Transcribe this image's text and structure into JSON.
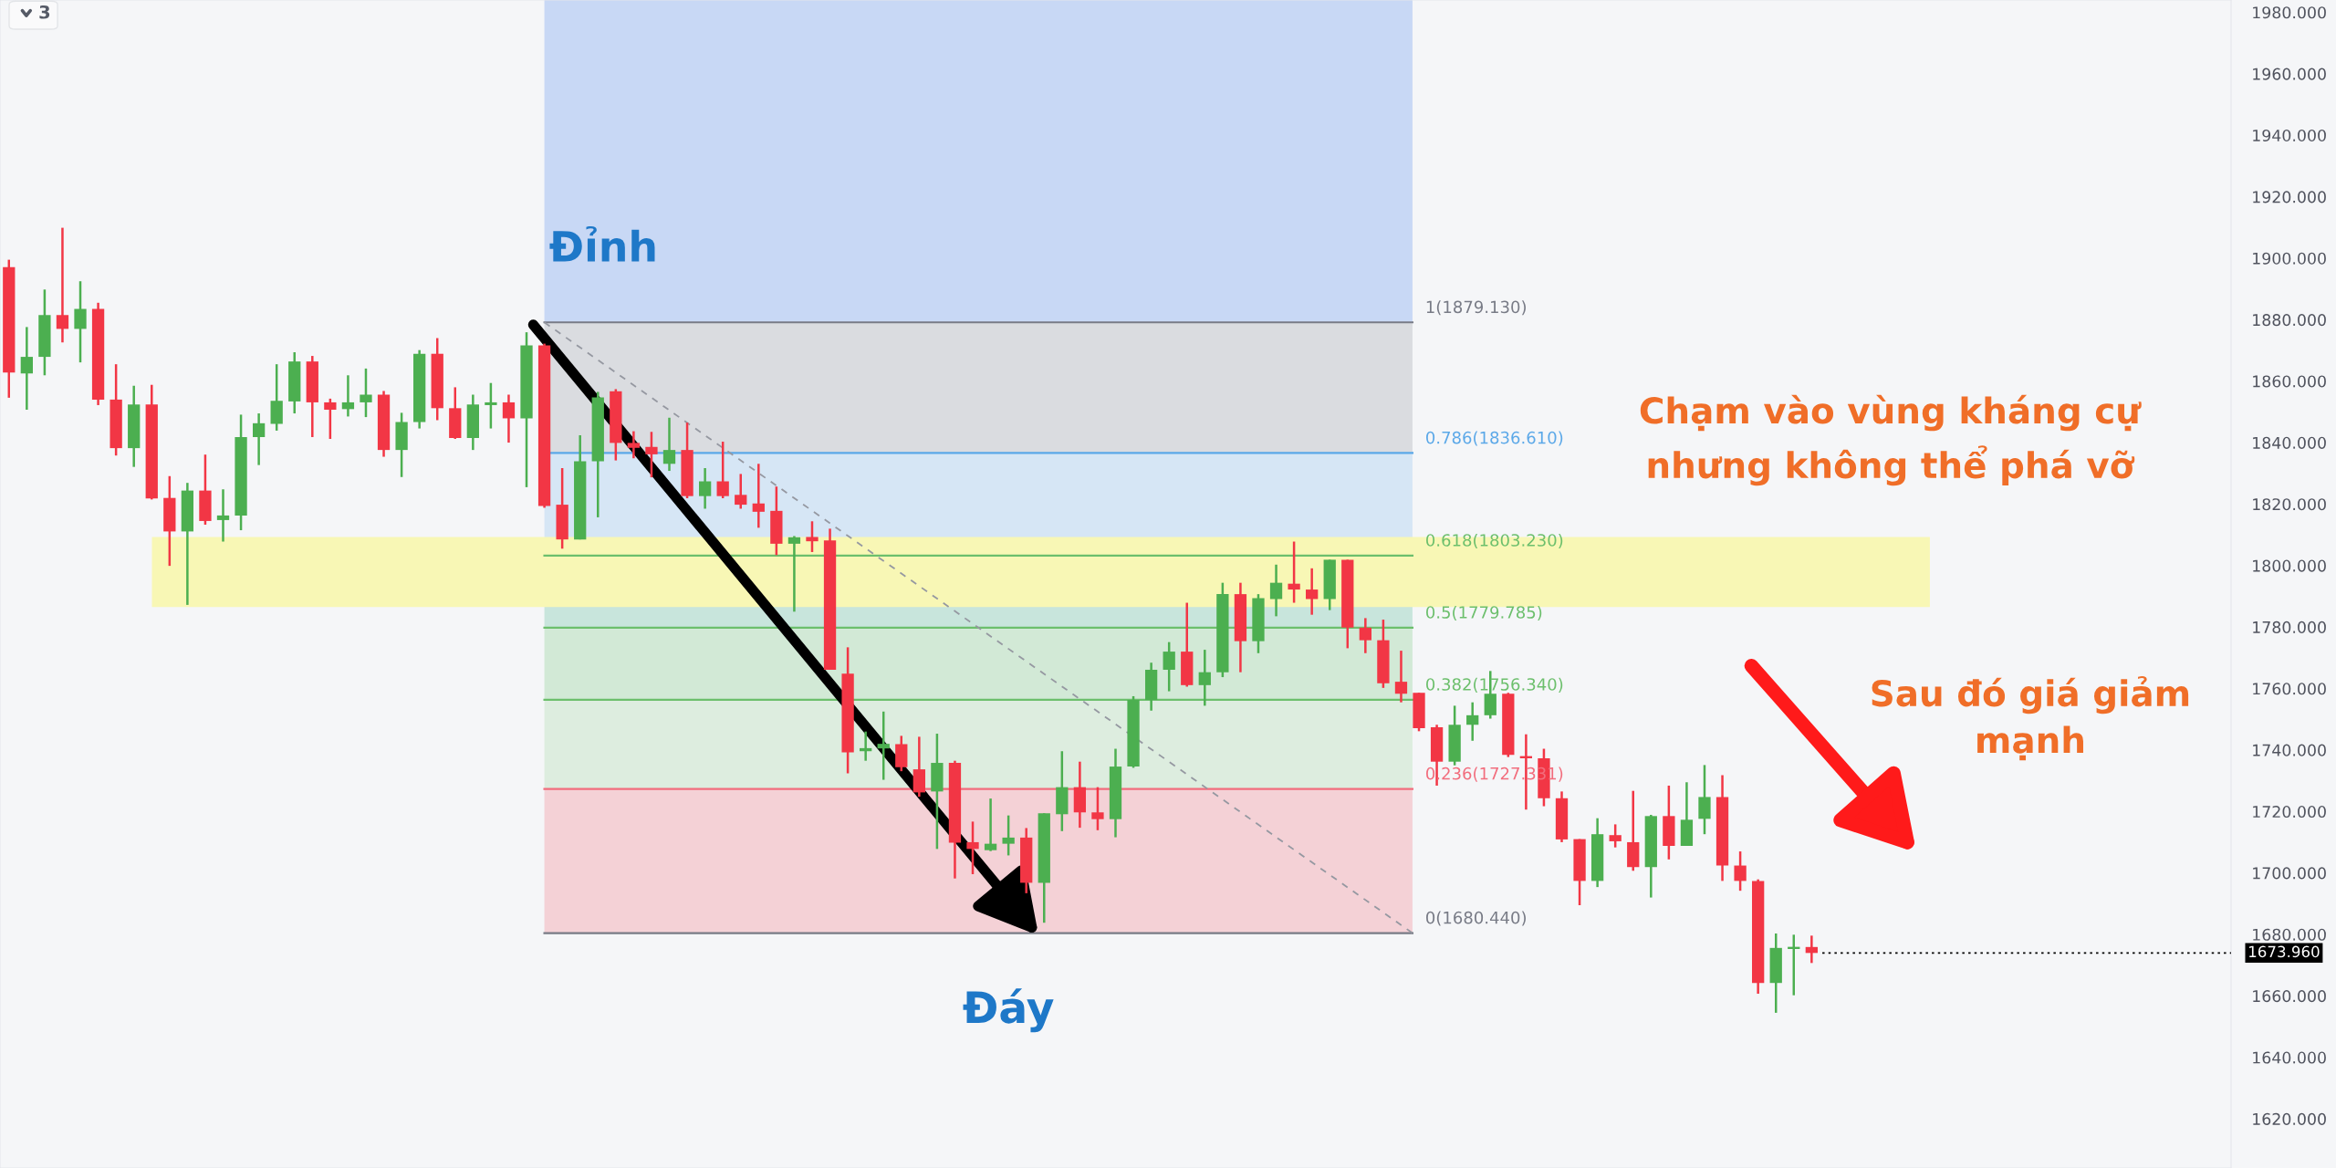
{
  "chart_data": {
    "type": "candlestick",
    "categories": [
      null,
      null,
      null,
      null,
      null,
      null,
      null,
      null,
      null,
      null,
      null,
      null,
      null,
      null,
      null,
      null,
      null,
      null,
      null,
      null,
      null,
      null,
      null,
      null,
      null,
      null,
      null,
      null,
      null,
      null,
      null,
      null,
      null,
      null,
      null,
      null,
      null,
      null,
      null,
      null,
      null,
      null,
      null,
      null,
      null,
      null,
      null,
      null,
      null,
      null,
      null,
      null,
      null,
      null,
      null,
      null,
      null,
      null,
      null,
      null,
      null,
      null,
      null,
      null,
      null,
      null,
      null,
      null,
      null,
      null,
      null,
      null,
      null,
      null,
      null,
      null,
      null,
      null,
      null,
      null,
      null,
      null,
      null,
      null,
      null,
      null,
      null,
      null,
      null,
      null,
      null,
      null,
      null,
      null,
      null,
      null,
      null,
      null,
      null,
      null,
      null,
      null,
      null,
      null,
      null,
      null,
      null,
      null,
      null,
      null,
      null,
      null,
      null,
      null,
      null,
      null,
      null,
      null,
      null,
      null,
      null,
      null,
      null,
      null,
      null
    ],
    "ohlc": [
      [
        1897.1,
        1899.5,
        1854.6,
        1862.8
      ],
      [
        1862.5,
        1877.6,
        1850.7,
        1867.9
      ],
      [
        1867.9,
        1889.8,
        1861.9,
        1881.5
      ],
      [
        1881.5,
        1909.9,
        1872.6,
        1877.0
      ],
      [
        1877.0,
        1892.5,
        1866.1,
        1883.5
      ],
      [
        1883.5,
        1885.5,
        1852.2,
        1854.0
      ],
      [
        1854.0,
        1865.5,
        1835.8,
        1838.2
      ],
      [
        1838.2,
        1858.5,
        1832.1,
        1852.4
      ],
      [
        1852.4,
        1858.8,
        1821.5,
        1821.8
      ],
      [
        1822.0,
        1829.1,
        1799.9,
        1811.1
      ],
      [
        1811.1,
        1826.9,
        1787.2,
        1824.4
      ],
      [
        1824.4,
        1836.1,
        1813.3,
        1814.5
      ],
      [
        1814.8,
        1824.8,
        1807.8,
        1816.3
      ],
      [
        1816.3,
        1849.1,
        1811.5,
        1841.8
      ],
      [
        1841.8,
        1849.5,
        1832.7,
        1846.3
      ],
      [
        1846.1,
        1865.5,
        1843.9,
        1853.6
      ],
      [
        1853.4,
        1869.4,
        1849.5,
        1866.4
      ],
      [
        1866.4,
        1868.2,
        1841.8,
        1853.1
      ],
      [
        1853.1,
        1854.3,
        1841.2,
        1850.7
      ],
      [
        1850.9,
        1861.9,
        1848.5,
        1853.1
      ],
      [
        1853.1,
        1864.1,
        1848.3,
        1855.6
      ],
      [
        1855.6,
        1856.8,
        1835.4,
        1837.6
      ],
      [
        1837.6,
        1849.7,
        1828.8,
        1846.7
      ],
      [
        1846.7,
        1870.1,
        1844.6,
        1868.9
      ],
      [
        1868.9,
        1874.0,
        1847.3,
        1851.2
      ],
      [
        1851.2,
        1858.0,
        1841.2,
        1841.5
      ],
      [
        1841.5,
        1855.6,
        1837.6,
        1852.4
      ],
      [
        1852.2,
        1859.4,
        1844.6,
        1853.1
      ],
      [
        1853.1,
        1855.6,
        1840.0,
        1847.9
      ],
      [
        1847.9,
        1875.9,
        1825.5,
        1871.6
      ],
      [
        1871.6,
        1872.2,
        1818.8,
        1819.4
      ],
      [
        1819.8,
        1831.7,
        1805.5,
        1808.5
      ],
      [
        1808.5,
        1842.4,
        1808.5,
        1833.9
      ],
      [
        1833.9,
        1856.5,
        1815.7,
        1854.7
      ],
      [
        1856.7,
        1857.4,
        1834.2,
        1839.9
      ],
      [
        1839.9,
        1843.7,
        1834.9,
        1838.3
      ],
      [
        1838.6,
        1843.5,
        1828.7,
        1836.2
      ],
      [
        1833.1,
        1848.1,
        1830.8,
        1837.6
      ],
      [
        1837.6,
        1846.5,
        1821.9,
        1822.6
      ],
      [
        1822.6,
        1831.7,
        1818.5,
        1827.4
      ],
      [
        1827.4,
        1840.3,
        1821.9,
        1822.6
      ],
      [
        1823.0,
        1829.8,
        1818.5,
        1819.8
      ],
      [
        1820.2,
        1833.1,
        1812.3,
        1817.5
      ],
      [
        1817.8,
        1825.7,
        1803.4,
        1807.1
      ],
      [
        1807.1,
        1809.6,
        1785.0,
        1809.2
      ],
      [
        1809.3,
        1814.4,
        1804.4,
        1807.9
      ],
      [
        1808.2,
        1812.0,
        1766.1,
        1766.1
      ],
      [
        1764.8,
        1773.4,
        1732.4,
        1739.2
      ],
      [
        1739.6,
        1746.0,
        1736.5,
        1740.6
      ],
      [
        1740.5,
        1752.5,
        1730.3,
        1742.0
      ],
      [
        1741.9,
        1744.6,
        1733.1,
        1734.4
      ],
      [
        1733.7,
        1744.3,
        1724.8,
        1726.2
      ],
      [
        1726.5,
        1745.3,
        1707.8,
        1735.8
      ],
      [
        1735.8,
        1736.5,
        1698.2,
        1709.8
      ],
      [
        1710.0,
        1716.7,
        1699.6,
        1707.8
      ],
      [
        1707.4,
        1724.2,
        1707.1,
        1709.5
      ],
      [
        1709.5,
        1718.7,
        1705.7,
        1711.5
      ],
      [
        1711.5,
        1714.6,
        1693.4,
        1696.8
      ],
      [
        1696.8,
        1719.4,
        1683.8,
        1719.4
      ],
      [
        1719.1,
        1739.6,
        1713.6,
        1727.9
      ],
      [
        1727.9,
        1736.2,
        1714.7,
        1719.7
      ],
      [
        1719.7,
        1727.9,
        1713.9,
        1717.5
      ],
      [
        1717.5,
        1740.4,
        1711.6,
        1734.6
      ],
      [
        1734.6,
        1757.5,
        1734.2,
        1756.3
      ],
      [
        1756.3,
        1768.4,
        1752.8,
        1766.1
      ],
      [
        1766.1,
        1775.1,
        1759.1,
        1772.0
      ],
      [
        1772.0,
        1787.9,
        1760.6,
        1761.1
      ],
      [
        1761.1,
        1772.6,
        1754.4,
        1765.3
      ],
      [
        1765.3,
        1794.4,
        1763.7,
        1790.7
      ],
      [
        1790.7,
        1794.4,
        1765.3,
        1775.4
      ],
      [
        1775.4,
        1790.7,
        1771.5,
        1789.4
      ],
      [
        1789.1,
        1800.3,
        1783.5,
        1794.4
      ],
      [
        1794.1,
        1807.8,
        1787.9,
        1792.2
      ],
      [
        1792.2,
        1799.1,
        1784.0,
        1789.1
      ],
      [
        1789.1,
        1801.9,
        1785.5,
        1801.9
      ],
      [
        1801.9,
        1801.9,
        1773.1,
        1779.8
      ],
      [
        1779.8,
        1782.9,
        1771.5,
        1775.7
      ],
      [
        1775.7,
        1782.4,
        1760.2,
        1761.7
      ],
      [
        1762.2,
        1772.3,
        1755.5,
        1758.3
      ],
      [
        1758.6,
        1758.6,
        1746.1,
        1747.1
      ],
      [
        1747.4,
        1748.2,
        1728.4,
        1736.2
      ],
      [
        1736.2,
        1754.4,
        1735.0,
        1748.2
      ],
      [
        1748.2,
        1755.5,
        1743.0,
        1751.3
      ],
      [
        1751.3,
        1765.7,
        1750.2,
        1758.3
      ],
      [
        1758.3,
        1758.6,
        1737.7,
        1738.4
      ],
      [
        1738.0,
        1745.1,
        1720.6,
        1737.3
      ],
      [
        1737.3,
        1740.4,
        1721.7,
        1724.3
      ],
      [
        1724.3,
        1726.5,
        1710.0,
        1710.9
      ],
      [
        1711.0,
        1711.0,
        1689.5,
        1697.4
      ],
      [
        1697.4,
        1717.8,
        1695.4,
        1712.6
      ],
      [
        1712.3,
        1715.8,
        1708.3,
        1710.3
      ],
      [
        1710.0,
        1726.7,
        1700.7,
        1701.9
      ],
      [
        1701.9,
        1718.9,
        1692.0,
        1718.5
      ],
      [
        1718.5,
        1728.4,
        1704.4,
        1708.8
      ],
      [
        1708.8,
        1729.5,
        1708.8,
        1717.3
      ],
      [
        1717.6,
        1735.1,
        1712.6,
        1724.7
      ],
      [
        1724.7,
        1731.8,
        1697.4,
        1702.4
      ],
      [
        1702.4,
        1707.0,
        1694.2,
        1697.4
      ],
      [
        1697.4,
        1697.9,
        1660.7,
        1664.2
      ],
      [
        1664.2,
        1680.3,
        1654.5,
        1675.6
      ],
      [
        1675.3,
        1679.9,
        1660.2,
        1675.9
      ],
      [
        1675.9,
        1679.6,
        1670.7,
        1673.96
      ],
      null,
      null,
      null,
      null,
      null,
      null,
      null,
      null,
      null,
      null,
      null,
      null,
      null,
      null,
      null,
      null,
      null,
      null,
      null,
      null,
      null,
      null,
      null
    ],
    "colors": [
      "#f23645",
      "#4caf50",
      "#4caf50",
      "#f23645",
      "#4caf50",
      "#f23645",
      "#f23645",
      "#4caf50",
      "#f23645",
      "#f23645",
      "#4caf50",
      "#f23645",
      "#4caf50",
      "#4caf50",
      "#4caf50",
      "#4caf50",
      "#4caf50",
      "#f23645",
      "#f23645",
      "#4caf50",
      "#4caf50",
      "#f23645",
      "#4caf50",
      "#4caf50",
      "#f23645",
      "#f23645",
      "#4caf50",
      "#4caf50",
      "#f23645",
      "#4caf50",
      "#f23645",
      "#f23645",
      "#4caf50",
      "#4caf50",
      "#f23645",
      "#f23645",
      "#f23645",
      "#4caf50",
      "#f23645",
      "#4caf50",
      "#f23645",
      "#f23645",
      "#f23645",
      "#f23645",
      "#4caf50",
      "#f23645",
      "#f23645",
      "#f23645",
      "#4caf50",
      "#4caf50",
      "#f23645",
      "#f23645",
      "#4caf50",
      "#f23645",
      "#f23645",
      "#4caf50",
      "#4caf50",
      "#f23645",
      "#4caf50",
      "#4caf50",
      "#f23645",
      "#f23645",
      "#4caf50",
      "#4caf50",
      "#4caf50",
      "#4caf50",
      "#f23645",
      "#4caf50",
      "#4caf50",
      "#f23645",
      "#4caf50",
      "#4caf50",
      "#f23645",
      "#f23645",
      "#4caf50",
      "#f23645",
      "#f23645",
      "#f23645",
      "#f23645",
      "#f23645",
      "#f23645",
      "#4caf50",
      "#4caf50",
      "#4caf50",
      "#f23645",
      "#f23645",
      "#f23645",
      "#f23645",
      "#f23645",
      "#4caf50",
      "#f23645",
      "#f23645",
      "#4caf50",
      "#f23645",
      "#4caf50",
      "#4caf50",
      "#f23645",
      "#f23645",
      "#f23645",
      "#4caf50",
      "#4caf50",
      "#f23645",
      null,
      null,
      null,
      null,
      null,
      null,
      null,
      null,
      null,
      null,
      null,
      null,
      null,
      null,
      null,
      null,
      null,
      null,
      null,
      null,
      null,
      null,
      null
    ],
    "ylim": [
      1604,
      1984
    ],
    "yticks": [
      {
        "value": 1620,
        "label": "1620.000"
      },
      {
        "value": 1640,
        "label": "1640.000"
      },
      {
        "value": 1660,
        "label": "1660.000"
      },
      {
        "value": 1680,
        "label": "1680.000"
      },
      {
        "value": 1700,
        "label": "1700.000"
      },
      {
        "value": 1720,
        "label": "1720.000"
      },
      {
        "value": 1740,
        "label": "1740.000"
      },
      {
        "value": 1760,
        "label": "1760.000"
      },
      {
        "value": 1780,
        "label": "1780.000"
      },
      {
        "value": 1800,
        "label": "1800.000"
      },
      {
        "value": 1820,
        "label": "1820.000"
      },
      {
        "value": 1840,
        "label": "1840.000"
      },
      {
        "value": 1860,
        "label": "1860.000"
      },
      {
        "value": 1880,
        "label": "1880.000"
      },
      {
        "value": 1900,
        "label": "1900.000"
      },
      {
        "value": 1920,
        "label": "1920.000"
      },
      {
        "value": 1940,
        "label": "1940.000"
      },
      {
        "value": 1960,
        "label": "1960.000"
      },
      {
        "value": 1980,
        "label": "1980.000"
      }
    ],
    "tick_labels": "y",
    "bands": [
      {
        "axis": "y",
        "from": 1879.13,
        "to": 1984,
        "color": "#c8d8f5"
      },
      {
        "axis": "y",
        "from": 1836.61,
        "to": 1879.13,
        "color": "#dadce0"
      },
      {
        "axis": "y",
        "from": 1803.23,
        "to": 1836.61,
        "color": "#d6e6f5"
      },
      {
        "axis": "y",
        "from": 1779.785,
        "to": 1803.23,
        "color": "#c8e5dc"
      },
      {
        "axis": "y",
        "from": 1756.34,
        "to": 1779.785,
        "color": "#d2e9d6"
      },
      {
        "axis": "y",
        "from": 1727.331,
        "to": 1756.34,
        "color": "#ddeddf"
      },
      {
        "axis": "y",
        "from": 1680.44,
        "to": 1727.331,
        "color": "#f4d1d6"
      },
      {
        "axis": "y",
        "from": 1786.5,
        "to": 1809.3,
        "color": "#f8f7b5"
      }
    ],
    "ref_lines": [
      {
        "axis": "y",
        "value": 1879.13,
        "label": "1(1879.130)",
        "color": "#787b86"
      },
      {
        "axis": "y",
        "value": 1836.61,
        "label": "0.786(1836.610)",
        "color": "#5ba8e8"
      },
      {
        "axis": "y",
        "value": 1803.23,
        "label": "0.618(1803.230)",
        "color": "#6cbf6c"
      },
      {
        "axis": "y",
        "value": 1779.785,
        "label": "0.5(1779.785)",
        "color": "#6cbf6c"
      },
      {
        "axis": "y",
        "value": 1756.34,
        "label": "0.382(1756.340)",
        "color": "#6cbf6c"
      },
      {
        "axis": "y",
        "value": 1727.331,
        "label": "0.236(1727.331)",
        "color": "#f26d7d"
      },
      {
        "axis": "y",
        "value": 1680.44,
        "label": "0(1680.440)",
        "color": "#787b86"
      },
      {
        "axis": "y",
        "value": 1673.96,
        "label": "1673.960",
        "color": "#000000",
        "line_style": "dotted"
      }
    ],
    "annotations": [
      "3",
      "Đỉnh",
      "Đáy",
      "Chạm vào vùng kháng cự\nnhưng không thể phá vỡ",
      "Sau đó giá giảm\nmạnh"
    ]
  }
}
